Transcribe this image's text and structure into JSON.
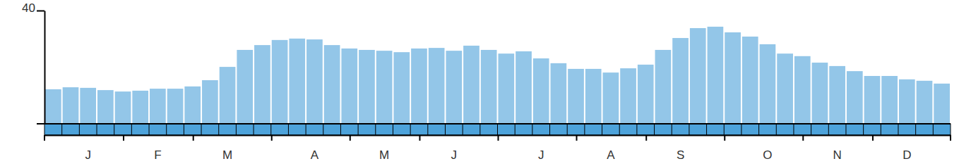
{
  "chart_data": {
    "type": "bar",
    "categories": [
      null,
      null,
      "J",
      null,
      null,
      null,
      "F",
      null,
      null,
      null,
      "M",
      null,
      null,
      null,
      null,
      "A",
      null,
      null,
      null,
      "M",
      null,
      null,
      null,
      "J",
      null,
      null,
      null,
      null,
      "J",
      null,
      null,
      null,
      "A",
      null,
      null,
      null,
      "S",
      null,
      null,
      null,
      null,
      "O",
      null,
      null,
      null,
      "N",
      null,
      null,
      null,
      "D",
      null,
      null
    ],
    "values": [
      12.2,
      12.9,
      12.7,
      11.9,
      11.4,
      11.7,
      12.4,
      12.4,
      13.2,
      15.4,
      20.1,
      26.1,
      27.8,
      29.6,
      30.1,
      29.8,
      27.8,
      26.6,
      26.1,
      25.8,
      25.3,
      26.6,
      26.8,
      25.8,
      27.6,
      26.1,
      24.8,
      25.6,
      23.1,
      21.4,
      19.4,
      19.4,
      18.1,
      19.6,
      20.9,
      26.1,
      30.3,
      33.8,
      34.3,
      32.3,
      30.8,
      28.1,
      24.8,
      23.9,
      21.6,
      20.4,
      18.6,
      16.9,
      16.9,
      15.7,
      15.2,
      14.2
    ],
    "color": "#93c6e8",
    "ylim": [
      0,
      40
    ],
    "yticks": [
      40
    ]
  }
}
